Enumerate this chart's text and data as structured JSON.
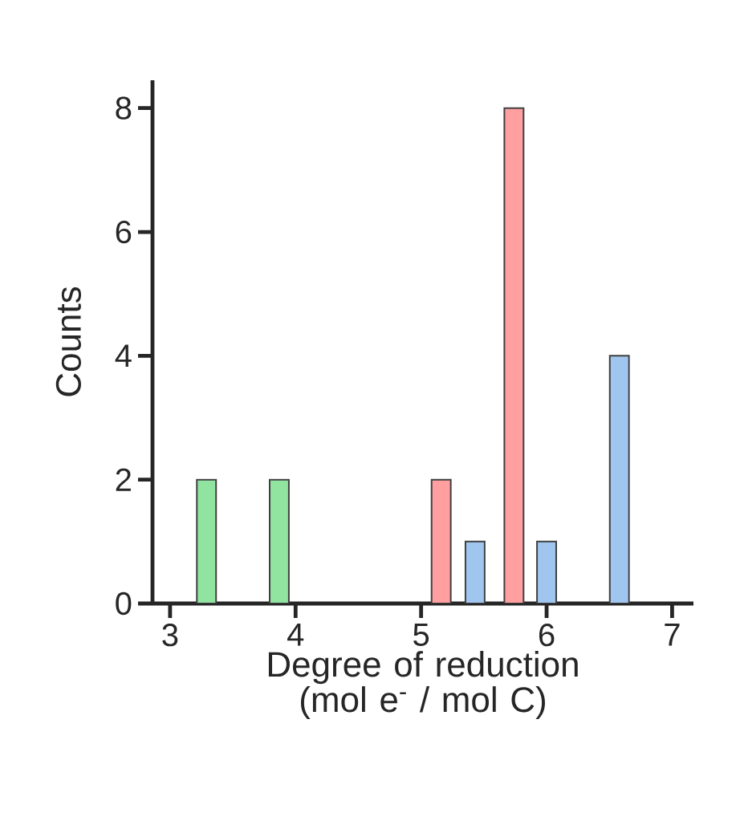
{
  "chart_data": {
    "type": "bar",
    "xlabel": "Degree of reduction (mol e$^{-}$ / mol C)",
    "ylabel": "Counts",
    "xlim": [
      2.86,
      7.17
    ],
    "ylim": [
      0,
      8.45
    ],
    "xticks": [
      3,
      4,
      5,
      6,
      7
    ],
    "yticks": [
      0,
      2,
      4,
      6,
      8
    ],
    "series": [
      {
        "color": "#90e4a0",
        "x": [
          3.29,
          3.87
        ],
        "values": [
          2,
          2
        ]
      },
      {
        "color": "#ff9f9f",
        "x": [
          5.16,
          5.74
        ],
        "values": [
          2,
          8
        ]
      },
      {
        "color": "#a0c6f0",
        "x": [
          5.43,
          6.0,
          6.58
        ],
        "values": [
          1,
          1,
          4
        ]
      }
    ]
  }
}
